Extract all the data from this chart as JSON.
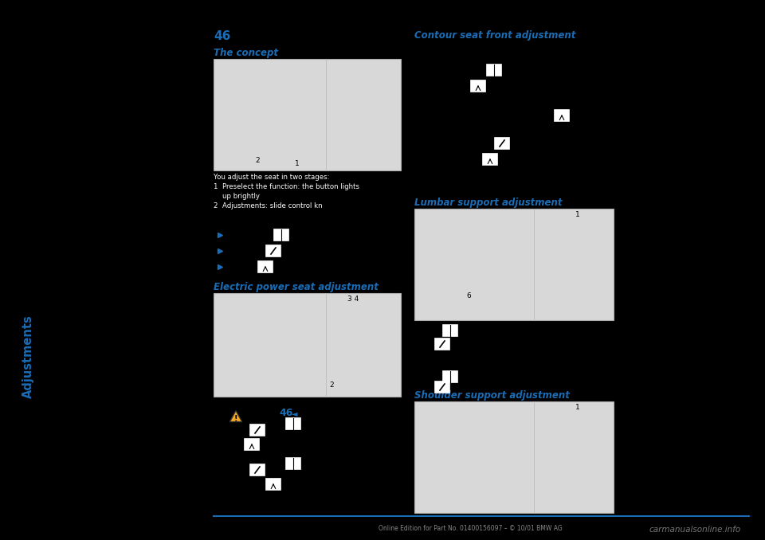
{
  "background_color": "#000000",
  "sidebar_color": "#1a6cb5",
  "sidebar_text": "Adjustments",
  "page_number": "46",
  "page_number_color": "#1a6cb5",
  "heading_color": "#1a6cb5",
  "body_color": "#ffffff",
  "footer_text": "Online Edition for Part No. 01400156097 – © 10/01 BMW AG",
  "footer_color": "#888888",
  "watermark": "carmanualsonline.info",
  "image_bg": "#d8d8d8",
  "image_edge": "#aaaaaa",
  "warning_color": "#f5a623"
}
